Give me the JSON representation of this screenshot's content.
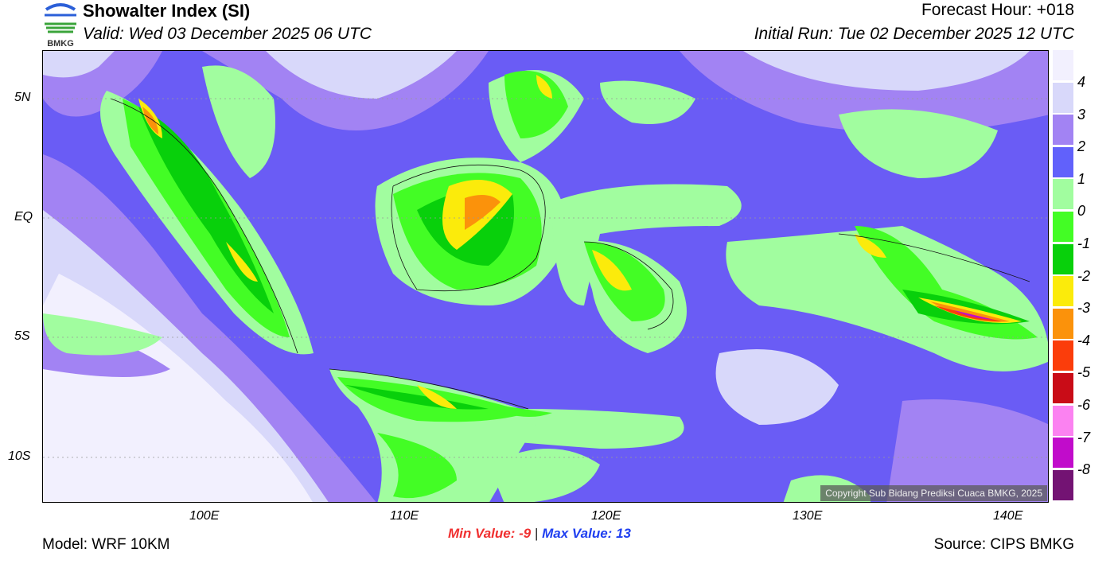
{
  "header": {
    "logo_text": "BMKG",
    "title": "Showalter Index (SI)",
    "valid": "Valid: Wed 03 December 2025 06 UTC",
    "forecast_hour": "Forecast Hour: +018",
    "initial_run": "Initial Run: Tue 02 December 2025 12 UTC"
  },
  "map": {
    "lat_labels": [
      "5N",
      "EQ",
      "5S",
      "10S"
    ],
    "lon_labels": [
      "100E",
      "110E",
      "120E",
      "130E",
      "140E"
    ],
    "copyright": "Copyright Sub Bidang Prediksi Cuaca BMKG, 2025"
  },
  "colorbar": {
    "labels": [
      "4",
      "3",
      "2",
      "1",
      "0",
      "-1",
      "-2",
      "-3",
      "-4",
      "-5",
      "-6",
      "-7",
      "-8"
    ],
    "colors": [
      "#f2f0fe",
      "#d8d8fa",
      "#a283f3",
      "#6161fb",
      "#a1fd9f",
      "#43fd25",
      "#08d00b",
      "#fbeb0b",
      "#fb920b",
      "#fb3d0b",
      "#c90c17",
      "#fb82f1",
      "#c10ccb",
      "#731373"
    ]
  },
  "footer": {
    "min_label": "Min Value:",
    "min_value": "-9",
    "separator": "|",
    "max_label": "Max Value:",
    "max_value": "13",
    "model": "Model: WRF 10KM",
    "source": "Source: CIPS BMKG"
  }
}
